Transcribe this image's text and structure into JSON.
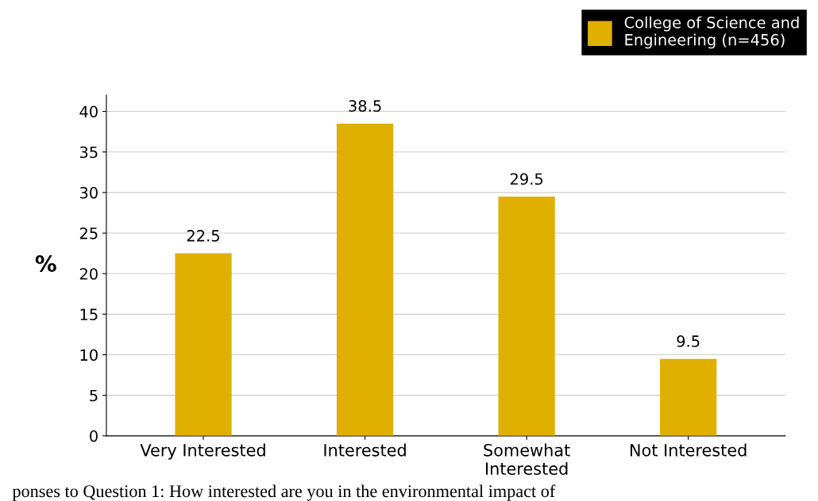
{
  "chart_data": {
    "type": "bar",
    "ylabel": "%",
    "categories": [
      "Very Interested",
      "Interested",
      "Somewhat\nInterested",
      "Not Interested"
    ],
    "series": [
      {
        "name": "College of Science and\nEngineering (n=456)",
        "color": "#e0b000",
        "values": [
          22.5,
          38.5,
          29.5,
          9.5
        ]
      }
    ],
    "ylim": [
      0,
      42
    ],
    "yticks": [
      0,
      5,
      10,
      15,
      20,
      25,
      30,
      35,
      40
    ],
    "grid": "y",
    "legend": "top right",
    "data_labels": true,
    "annotations": [
      "ponses to Question 1: How interested are you in the environmental impact of"
    ]
  }
}
